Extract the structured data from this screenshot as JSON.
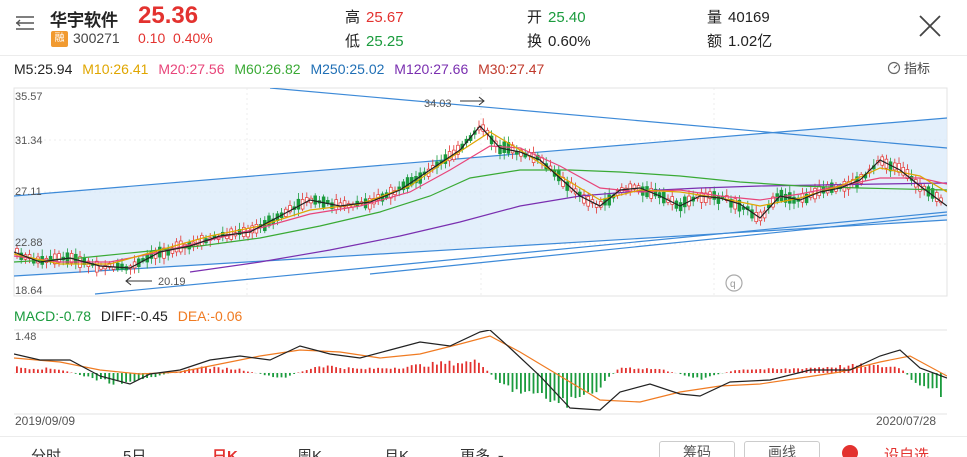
{
  "header": {
    "stock_name": "华宇软件",
    "price": "25.36",
    "badge": "融",
    "code": "300271",
    "change": "0.10  0.40%",
    "high_label": "高",
    "high_value": "25.67",
    "low_label": "低",
    "low_value": "25.25",
    "open_label": "开",
    "open_value": "25.40",
    "turnover_label": "换",
    "turnover_value": "0.60%",
    "volume_label": "量",
    "volume_value": "40169",
    "amount_label": "额",
    "amount_value": "1.02亿"
  },
  "ma_legend": [
    {
      "label": "M5:25.94",
      "color": "#222222"
    },
    {
      "label": "M10:26.41",
      "color": "#e0a600"
    },
    {
      "label": "M20:27.56",
      "color": "#e8457a"
    },
    {
      "label": "M60:26.82",
      "color": "#3aaa35"
    },
    {
      "label": "M250:25.02",
      "color": "#1f6fb5"
    },
    {
      "label": "M120:27.66",
      "color": "#7a2fb0"
    },
    {
      "label": "M30:27.47",
      "color": "#c0392b"
    }
  ],
  "indicator_label": "指标",
  "price_axis": [
    "35.57",
    "31.34",
    "27.11",
    "22.88",
    "18.64"
  ],
  "annotations": {
    "high": "34.03",
    "low": "20.19"
  },
  "macd_legend": {
    "macd": "MACD:-0.78",
    "diff": "DIFF:-0.45",
    "dea": "DEA:-0.06"
  },
  "macd_top": "1.48",
  "dates": {
    "start": "2019/09/09",
    "end": "2020/07/28"
  },
  "tabs": [
    "分时",
    "5日",
    "日K",
    "周K",
    "月K",
    "更多"
  ],
  "active_tab": "日K",
  "tab_buttons": [
    "筹码",
    "画线"
  ],
  "add_favorite": "设自选",
  "colors": {
    "up": "#e3322f",
    "down": "#1a9b3d",
    "channel": "#3d8ad8"
  }
}
